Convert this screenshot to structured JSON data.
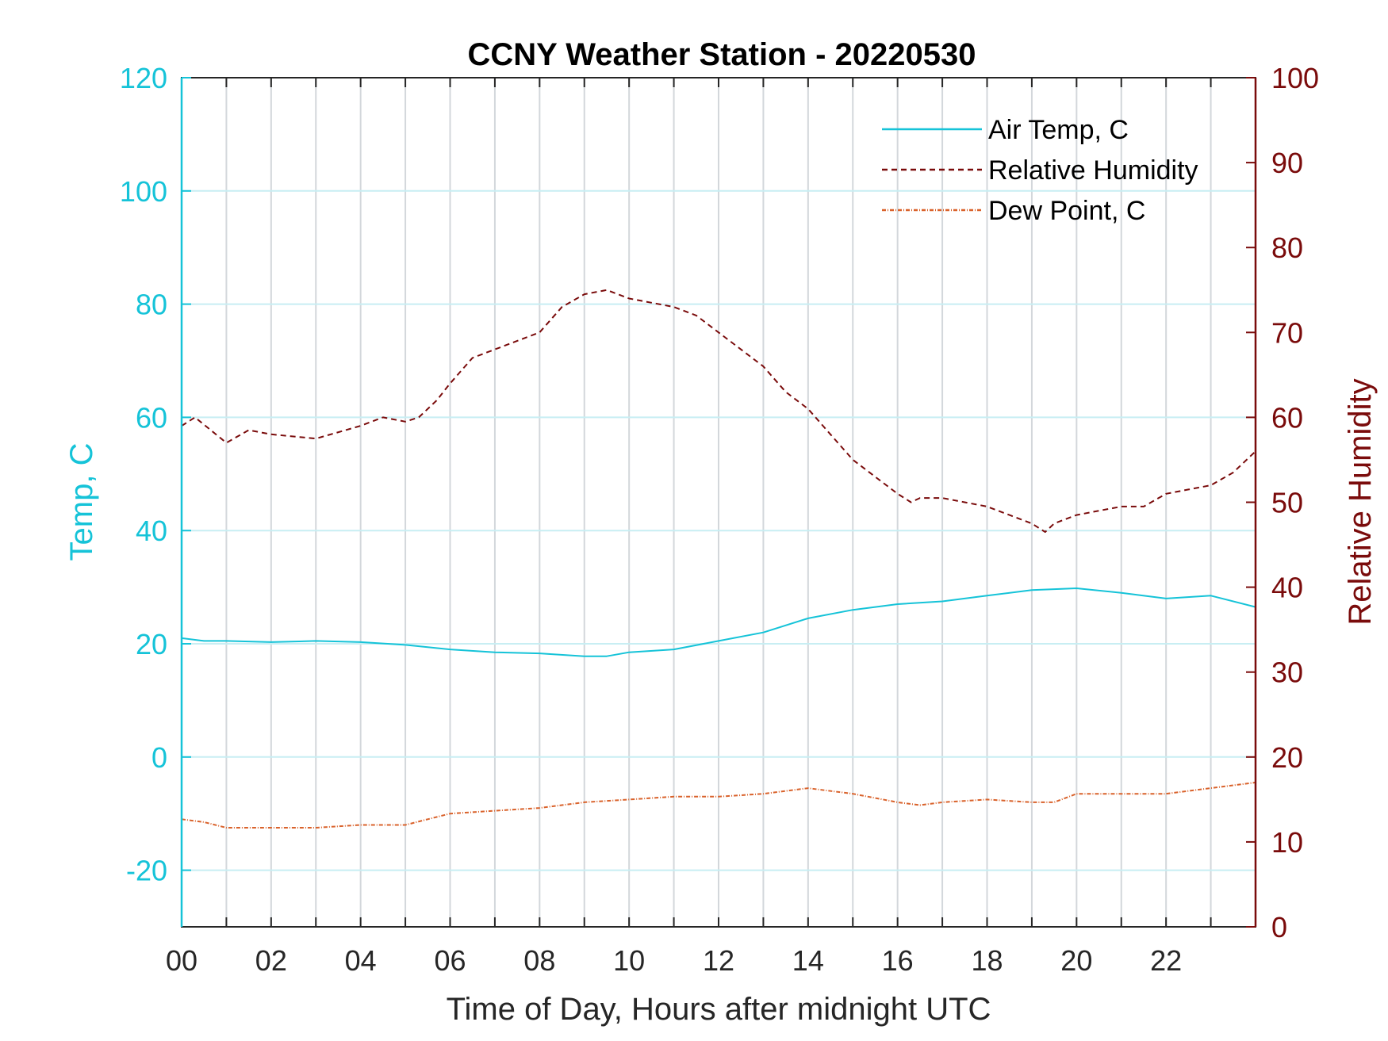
{
  "chart_data": {
    "type": "line",
    "title": "CCNY Weather Station - 20220530",
    "xlabel": "Time of Day, Hours after midnight UTC",
    "ylabel_left": "Temp, C",
    "ylabel_right": "Relative Humidity",
    "xlim": [
      0,
      24
    ],
    "ylim_left": [
      -30,
      120
    ],
    "ylim_right": [
      0,
      100
    ],
    "x_ticks": [
      0,
      2,
      4,
      6,
      8,
      10,
      12,
      14,
      16,
      18,
      20,
      22
    ],
    "x_tick_labels": [
      "00",
      "02",
      "04",
      "06",
      "08",
      "10",
      "12",
      "14",
      "16",
      "18",
      "20",
      "22"
    ],
    "y_left_ticks": [
      -20,
      0,
      20,
      40,
      60,
      80,
      100,
      120
    ],
    "y_left_tick_labels": [
      "-20",
      "0",
      "20",
      "40",
      "60",
      "80",
      "100",
      "120"
    ],
    "y_right_ticks": [
      0,
      10,
      20,
      30,
      40,
      50,
      60,
      70,
      80,
      90,
      100
    ],
    "y_right_tick_labels": [
      "0",
      "10",
      "20",
      "30",
      "40",
      "50",
      "60",
      "70",
      "80",
      "90",
      "100"
    ],
    "grid": true,
    "legend_position": "top-right",
    "series": [
      {
        "name": "Air Temp, C",
        "axis": "left",
        "color": "#15c3d8",
        "style": "solid",
        "x": [
          0,
          0.5,
          1,
          2,
          3,
          4,
          5,
          6,
          7,
          8,
          9,
          9.5,
          10,
          11,
          12,
          13,
          14,
          15,
          16,
          17,
          18,
          19,
          20,
          21,
          22,
          23,
          24
        ],
        "y": [
          21,
          20.5,
          20.5,
          20.3,
          20.5,
          20.3,
          19.8,
          19,
          18.5,
          18.3,
          17.8,
          17.8,
          18.5,
          19,
          20.5,
          22,
          24.5,
          26,
          27,
          27.5,
          28.5,
          29.5,
          29.8,
          29,
          28,
          28.5,
          26.5
        ]
      },
      {
        "name": "Relative Humidity",
        "axis": "right",
        "color": "#7a0b0b",
        "style": "dashed",
        "x": [
          0,
          0.3,
          1,
          1.5,
          2,
          3,
          4,
          4.5,
          5,
          5.3,
          5.7,
          6,
          6.5,
          7,
          8,
          8.5,
          9,
          9.5,
          10,
          10.5,
          11,
          11.5,
          12,
          12.5,
          13,
          13.5,
          14,
          14.5,
          15,
          15.5,
          16,
          16.3,
          16.5,
          17,
          17.5,
          18,
          18.5,
          19,
          19.3,
          19.5,
          20,
          20.5,
          21,
          21.5,
          22,
          22.5,
          23,
          23.5,
          24
        ],
        "y": [
          59,
          60,
          57,
          58.5,
          58,
          57.5,
          59,
          60,
          59.5,
          60,
          62,
          64,
          67,
          68,
          70,
          73,
          74.5,
          75,
          74,
          73.5,
          73,
          72,
          70,
          68,
          66,
          63,
          61,
          58,
          55,
          53,
          51,
          50,
          50.5,
          50.5,
          50,
          49.5,
          48.5,
          47.5,
          46.5,
          47.5,
          48.5,
          49,
          49.5,
          49.5,
          51,
          51.5,
          52,
          53.5,
          56
        ]
      },
      {
        "name": "Dew Point, C",
        "axis": "left",
        "color": "#d9622b",
        "style": "dashdot",
        "x": [
          0,
          0.5,
          1,
          2,
          3,
          4,
          5,
          5.5,
          6,
          7,
          8,
          9,
          10,
          11,
          12,
          13,
          14,
          15,
          16,
          16.5,
          17,
          18,
          19,
          19.5,
          20,
          21,
          22,
          23,
          24
        ],
        "y": [
          -11,
          -11.5,
          -12.5,
          -12.5,
          -12.5,
          -12,
          -12,
          -11,
          -10,
          -9.5,
          -9,
          -8,
          -7.5,
          -7,
          -7,
          -6.5,
          -5.5,
          -6.5,
          -8,
          -8.5,
          -8,
          -7.5,
          -8,
          -8,
          -6.5,
          -6.5,
          -6.5,
          -5.5,
          -4.5
        ]
      }
    ]
  }
}
